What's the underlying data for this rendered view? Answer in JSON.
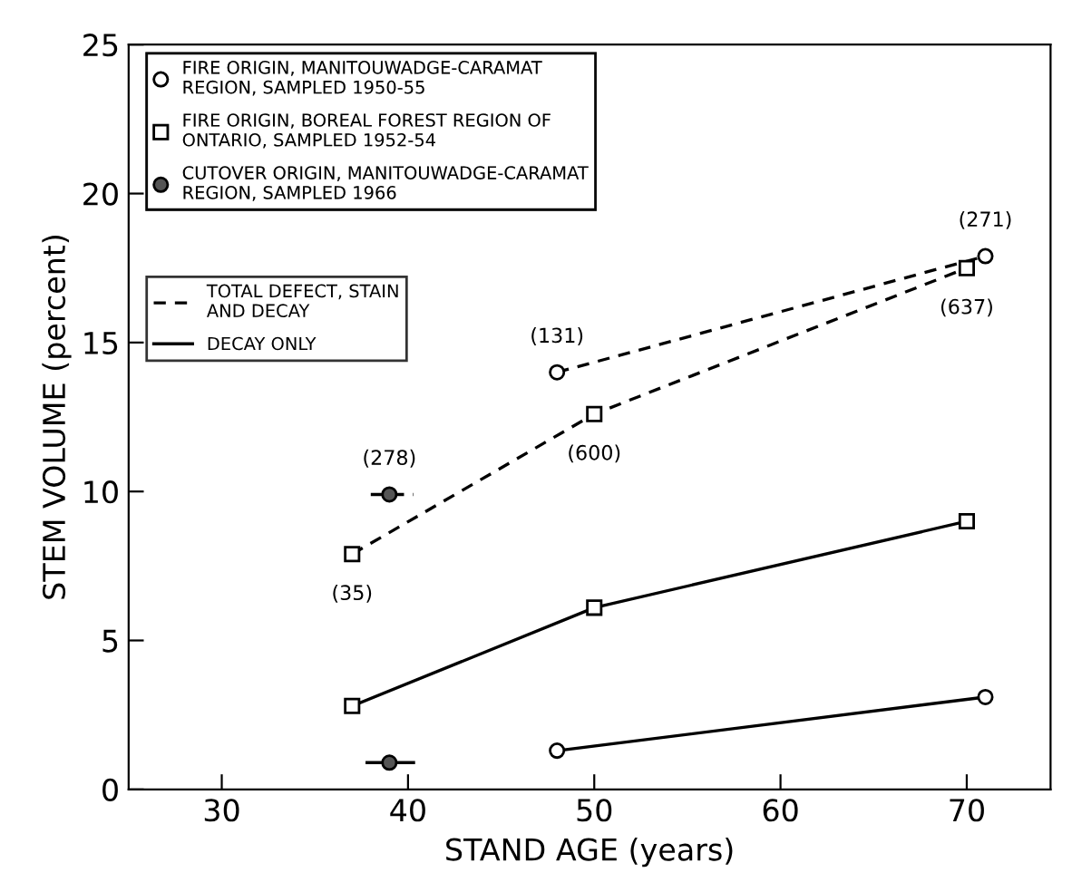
{
  "chart_data": {
    "type": "line",
    "xlabel": "STAND AGE (years)",
    "ylabel": "STEM VOLUME (percent)",
    "xlim": [
      25,
      74.5
    ],
    "ylim": [
      0,
      25
    ],
    "xticks": [
      30,
      40,
      50,
      60,
      70
    ],
    "yticks": [
      0,
      5,
      10,
      15,
      20,
      25
    ],
    "grid": false,
    "legend": "top left",
    "series": [
      {
        "name": "FIRE ORIGIN, MANITOUWADGE-CARAMAT\nREGION, SAMPLED 1950-55",
        "color": "#ffffff",
        "marker": "circle",
        "line_style": "dashed",
        "x": [
          48,
          71
        ],
        "values": [
          14.0,
          17.9
        ]
      },
      {
        "name": "FIRE ORIGIN, BOREAL FOREST REGION OF\nONTARIO, SAMPLED 1952-54",
        "color": "#ffffff",
        "marker": "square",
        "line_style": "dashed",
        "x": [
          37,
          50,
          70
        ],
        "values": [
          7.9,
          12.6,
          17.5
        ]
      },
      {
        "name": "CUTOVER ORIGIN, MANITOUWADGE-CARAMAT\nREGION, SAMPLED 1966",
        "color": "#555555",
        "marker": "circle",
        "line_style": "dashed",
        "x": [
          39
        ],
        "values": [
          9.9
        ],
        "xerrors": [
          [
            38,
            40.3
          ]
        ]
      },
      {
        "color": "#ffffff",
        "marker": "circle",
        "line_style": "solid",
        "x": [
          48,
          71
        ],
        "values": [
          1.3,
          3.1
        ]
      },
      {
        "color": "#ffffff",
        "marker": "square",
        "line_style": "solid",
        "x": [
          37,
          50,
          70
        ],
        "values": [
          2.8,
          6.1,
          9.0
        ]
      },
      {
        "color": "#555555",
        "marker": "circle",
        "line_style": "solid",
        "x": [
          39
        ],
        "values": [
          0.9
        ],
        "xerrors": [
          [
            37.8,
            40.3
          ]
        ]
      }
    ],
    "annotations": [
      "TOTAL DEFECT, STAIN\nAND DECAY",
      "DECAY ONLY",
      {
        "text": "(278)",
        "x": 39,
        "y": 9.9
      },
      {
        "text": "(131)",
        "x": 48,
        "y": 14.0
      },
      {
        "text": "(271)",
        "x": 71,
        "y": 17.9
      },
      {
        "text": "(35)",
        "x": 37,
        "y": 7.9
      },
      {
        "text": "(600)",
        "x": 50,
        "y": 12.6
      },
      {
        "text": "(637)",
        "x": 70,
        "y": 17.5
      }
    ]
  }
}
